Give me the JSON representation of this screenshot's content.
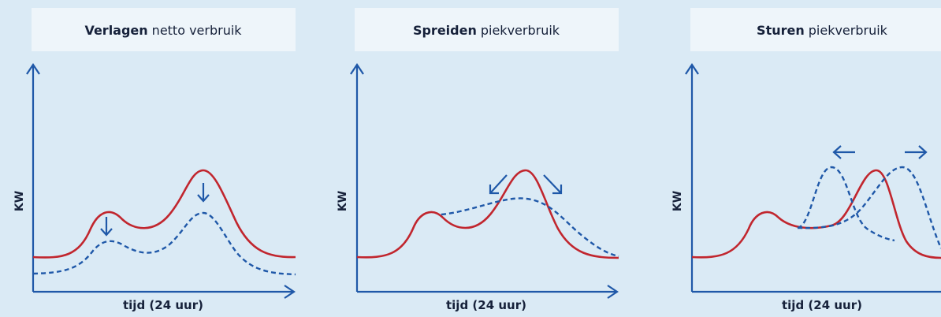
{
  "panels": [
    {
      "title_bold": "Verlagen",
      "title_rest": "netto verbruik",
      "y_label": "KW",
      "x_label": "tijd (24 uur)"
    },
    {
      "title_bold": "Spreiden",
      "title_rest": "piekverbruik",
      "y_label": "KW",
      "x_label": "tijd (24 uur)"
    },
    {
      "title_bold": "Sturen",
      "title_rest": "piekverbruik",
      "y_label": "KW",
      "x_label": "tijd (24 uur)"
    }
  ]
}
